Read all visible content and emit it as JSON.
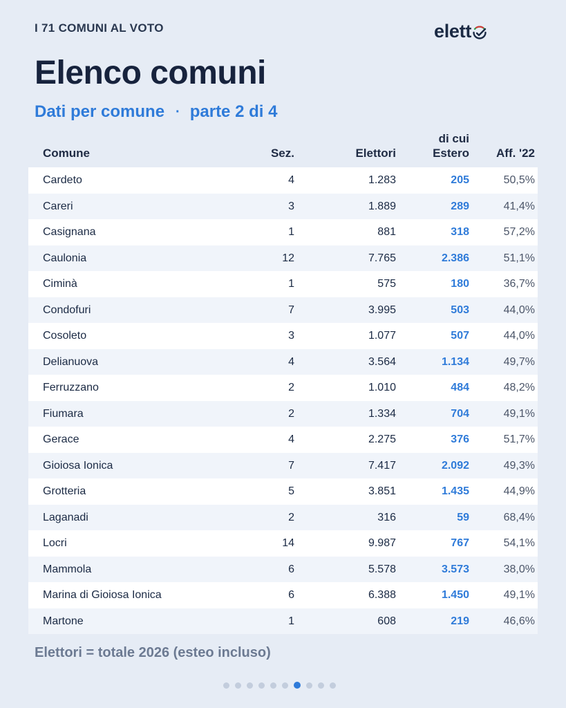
{
  "header": {
    "kicker": "I 71 COMUNI AL VOTO",
    "logo_text": "elett",
    "title": "Elenco comuni",
    "subtitle_left": "Dati per comune",
    "subtitle_sep": "·",
    "subtitle_right": "parte 2 di 4"
  },
  "colors": {
    "accent": "#2f7bd9",
    "background": "#e6ecf5",
    "title": "#17233d"
  },
  "table": {
    "headers": {
      "comune": "Comune",
      "sez": "Sez.",
      "elettori": "Elettori",
      "estero_line1": "di cui",
      "estero_line2": "Estero",
      "aff": "Aff. '22"
    },
    "rows": [
      {
        "comune": "Cardeto",
        "sez": "4",
        "elettori": "1.283",
        "estero": "205",
        "aff": "50,5%"
      },
      {
        "comune": "Careri",
        "sez": "3",
        "elettori": "1.889",
        "estero": "289",
        "aff": "41,4%"
      },
      {
        "comune": "Casignana",
        "sez": "1",
        "elettori": "881",
        "estero": "318",
        "aff": "57,2%"
      },
      {
        "comune": "Caulonia",
        "sez": "12",
        "elettori": "7.765",
        "estero": "2.386",
        "aff": "51,1%"
      },
      {
        "comune": "Ciminà",
        "sez": "1",
        "elettori": "575",
        "estero": "180",
        "aff": "36,7%"
      },
      {
        "comune": "Condofuri",
        "sez": "7",
        "elettori": "3.995",
        "estero": "503",
        "aff": "44,0%"
      },
      {
        "comune": "Cosoleto",
        "sez": "3",
        "elettori": "1.077",
        "estero": "507",
        "aff": "44,0%"
      },
      {
        "comune": "Delianuova",
        "sez": "4",
        "elettori": "3.564",
        "estero": "1.134",
        "aff": "49,7%"
      },
      {
        "comune": "Ferruzzano",
        "sez": "2",
        "elettori": "1.010",
        "estero": "484",
        "aff": "48,2%"
      },
      {
        "comune": "Fiumara",
        "sez": "2",
        "elettori": "1.334",
        "estero": "704",
        "aff": "49,1%"
      },
      {
        "comune": "Gerace",
        "sez": "4",
        "elettori": "2.275",
        "estero": "376",
        "aff": "51,7%"
      },
      {
        "comune": "Gioiosa Ionica",
        "sez": "7",
        "elettori": "7.417",
        "estero": "2.092",
        "aff": "49,3%"
      },
      {
        "comune": "Grotteria",
        "sez": "5",
        "elettori": "3.851",
        "estero": "1.435",
        "aff": "44,9%"
      },
      {
        "comune": "Laganadi",
        "sez": "2",
        "elettori": "316",
        "estero": "59",
        "aff": "68,4%"
      },
      {
        "comune": "Locri",
        "sez": "14",
        "elettori": "9.987",
        "estero": "767",
        "aff": "54,1%"
      },
      {
        "comune": "Mammola",
        "sez": "6",
        "elettori": "5.578",
        "estero": "3.573",
        "aff": "38,0%"
      },
      {
        "comune": "Marina di Gioiosa Ionica",
        "sez": "6",
        "elettori": "6.388",
        "estero": "1.450",
        "aff": "49,1%"
      },
      {
        "comune": "Martone",
        "sez": "1",
        "elettori": "608",
        "estero": "219",
        "aff": "46,6%"
      }
    ]
  },
  "footnote": "Elettori = totale 2026 (esteo incluso)",
  "pager": {
    "total": 10,
    "current": 7
  }
}
